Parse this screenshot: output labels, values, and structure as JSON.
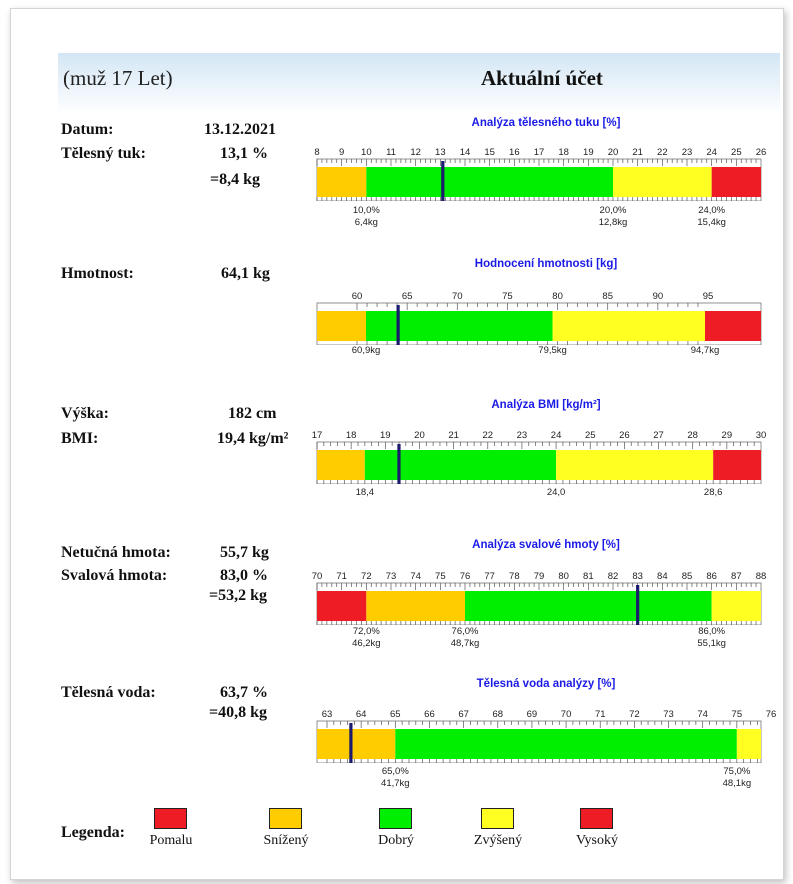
{
  "header": {
    "subject": "(muž 17 Let)",
    "title": "Aktuální účet"
  },
  "fields": {
    "date": {
      "label": "Datum:",
      "value": "13.12.2021"
    },
    "body_fat": {
      "label": "Tělesný tuk:",
      "value": "13,1 %",
      "value2": "=8,4 kg"
    },
    "weight": {
      "label": "Hmotnost:",
      "value": "64,1 kg"
    },
    "height": {
      "label": "Výška:",
      "value": "182 cm"
    },
    "bmi": {
      "label": "BMI:",
      "value": "19,4 kg/m²"
    },
    "lean_mass": {
      "label": "Netučná hmota:",
      "value": "55,7 kg"
    },
    "muscle_mass": {
      "label": "Svalová hmota:",
      "value": "83,0 %",
      "value2": "=53,2 kg"
    },
    "body_water": {
      "label": "Tělesná voda:",
      "value": "63,7 %",
      "value2": "=40,8 kg"
    }
  },
  "colors": {
    "pomalu": "#ee1c24",
    "snizeny": "#ffcc00",
    "dobry": "#00ee00",
    "zvyseny": "#ffff22",
    "vysoky": "#ee1c24",
    "marker": "#1b1b6e"
  },
  "gauges": [
    {
      "title": "Analýza tělesného tuku [%]",
      "ticks": [
        "8",
        "9",
        "10",
        "11",
        "12",
        "13",
        "14",
        "15",
        "16",
        "17",
        "18",
        "19",
        "20",
        "21",
        "22",
        "23",
        "24",
        "25",
        "26"
      ],
      "ticks_above": true,
      "zones": [
        {
          "to": 10,
          "color": "#ffcc00"
        },
        {
          "to": 20,
          "color": "#00ee00"
        },
        {
          "to": 24,
          "color": "#ffff22"
        },
        {
          "to": 26,
          "color": "#ee1c24"
        }
      ],
      "marker": 13.1,
      "refs": [
        {
          "value": 10,
          "line1": "10,0%",
          "line2": "6,4kg"
        },
        {
          "value": 20,
          "line1": "20,0%",
          "line2": "12,8kg"
        },
        {
          "value": 24,
          "line1": "24,0%",
          "line2": "15,4kg"
        }
      ]
    },
    {
      "title": "Hodnocení hmotnosti [kg]",
      "ticks": [
        "60",
        "65",
        "70",
        "75",
        "80",
        "85",
        "90",
        "95"
      ],
      "zones": [
        {
          "to": 60.9,
          "color": "#ffcc00"
        },
        {
          "to": 79.5,
          "color": "#00ee00"
        },
        {
          "to": 94.7,
          "color": "#ffff22"
        },
        {
          "to": 100,
          "color": "#ee1c24"
        }
      ],
      "marker": 64.1,
      "refs": [
        {
          "value": 60.9,
          "line1": "60,9kg"
        },
        {
          "value": 79.5,
          "line1": "79,5kg"
        },
        {
          "value": 94.7,
          "line1": "94,7kg"
        }
      ]
    },
    {
      "title": "Analýza BMI [kg/m²]",
      "ticks": [
        "17",
        "18",
        "19",
        "20",
        "21",
        "22",
        "23",
        "24",
        "25",
        "26",
        "27",
        "28",
        "29",
        "30"
      ],
      "zones": [
        {
          "to": 18.4,
          "color": "#ffcc00"
        },
        {
          "to": 24,
          "color": "#00ee00"
        },
        {
          "to": 28.6,
          "color": "#ffff22"
        },
        {
          "to": 30,
          "color": "#ee1c24"
        }
      ],
      "marker": 19.4,
      "refs": [
        {
          "value": 18.4,
          "line1": "18,4"
        },
        {
          "value": 24,
          "line1": "24,0"
        },
        {
          "value": 28.6,
          "line1": "28,6"
        }
      ]
    },
    {
      "title": "Analýza svalové hmoty [%]",
      "ticks": [
        "70",
        "71",
        "72",
        "73",
        "74",
        "75",
        "76",
        "77",
        "78",
        "79",
        "80",
        "81",
        "82",
        "83",
        "84",
        "85",
        "86",
        "87",
        "88"
      ],
      "zones": [
        {
          "to": 72,
          "color": "#ee1c24"
        },
        {
          "to": 76,
          "color": "#ffcc00"
        },
        {
          "to": 86,
          "color": "#00ee00"
        },
        {
          "to": 88,
          "color": "#ffff22"
        }
      ],
      "marker": 83.0,
      "refs": [
        {
          "value": 72,
          "line1": "72,0%",
          "line2": "46,2kg"
        },
        {
          "value": 76,
          "line1": "76,0%",
          "line2": "48,7kg"
        },
        {
          "value": 86,
          "line1": "86,0%",
          "line2": "55,1kg"
        }
      ]
    },
    {
      "title": "Tělesná voda analýzy [%]",
      "ticks": [
        "63",
        "64",
        "65",
        "66",
        "67",
        "68",
        "69",
        "70",
        "71",
        "72",
        "73",
        "74",
        "75",
        "76"
      ],
      "zones": [
        {
          "to": 65,
          "color": "#ffcc00"
        },
        {
          "to": 75,
          "color": "#00ee00"
        },
        {
          "to": 76,
          "color": "#ffff22"
        }
      ],
      "marker": 63.7,
      "refs": [
        {
          "value": 65,
          "line1": "65,0%",
          "line2": "41,7kg"
        },
        {
          "value": 75,
          "line1": "75,0%",
          "line2": "48,1kg"
        }
      ]
    }
  ],
  "legend": {
    "title": "Legenda:",
    "items": [
      {
        "label": "Pomalu",
        "color": "#ee1c24"
      },
      {
        "label": "Snížený",
        "color": "#ffcc00"
      },
      {
        "label": "Dobrý",
        "color": "#00ee00"
      },
      {
        "label": "Zvýšený",
        "color": "#ffff22"
      },
      {
        "label": "Vysoký",
        "color": "#ee1c24"
      }
    ]
  }
}
